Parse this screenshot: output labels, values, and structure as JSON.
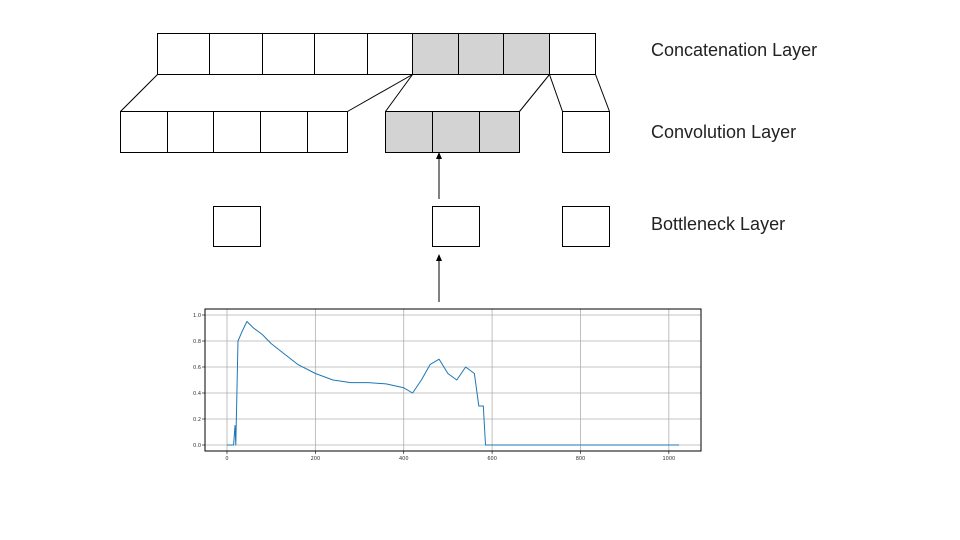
{
  "layers": {
    "concatenation": "Concatenation Layer",
    "convolution": "Convolution Layer",
    "bottleneck": "Bottleneck Layer"
  },
  "diagram": {
    "concatenation_cells": 9,
    "concatenation_highlight": [
      5,
      6,
      7
    ],
    "convolution_groups": [
      5,
      3,
      1
    ],
    "highlighted_group": 1,
    "bottleneck_count": 3,
    "cell_fill": "#ffffff",
    "highlight_fill": "#d3d3d3",
    "stroke": "#000000"
  },
  "chart_data": {
    "type": "line",
    "color": "#1f77b4",
    "xlim": [
      0,
      1023
    ],
    "ylim": [
      0.0,
      1.0
    ],
    "xticks": [
      0,
      200,
      400,
      600,
      800,
      1000
    ],
    "yticks": [
      0.0,
      0.2,
      0.4,
      0.6,
      0.8,
      1.0
    ],
    "grid": true,
    "series": [
      {
        "x": [
          0,
          15,
          18,
          20,
          25,
          35,
          45,
          60,
          80,
          100,
          130,
          160,
          200,
          240,
          280,
          320,
          360,
          400,
          420,
          440,
          460,
          480,
          500,
          520,
          540,
          560,
          570,
          580,
          585,
          600,
          650,
          700,
          750,
          800,
          850,
          900,
          950,
          1000,
          1023
        ],
        "y": [
          0.0,
          0.0,
          0.15,
          0.0,
          0.8,
          0.88,
          0.95,
          0.9,
          0.85,
          0.78,
          0.7,
          0.62,
          0.55,
          0.5,
          0.48,
          0.48,
          0.47,
          0.44,
          0.4,
          0.5,
          0.62,
          0.66,
          0.55,
          0.5,
          0.6,
          0.55,
          0.3,
          0.3,
          0.0,
          0.0,
          0.0,
          0.0,
          0.0,
          0.0,
          0.0,
          0.0,
          0.0,
          0.0,
          0.0
        ]
      }
    ]
  }
}
